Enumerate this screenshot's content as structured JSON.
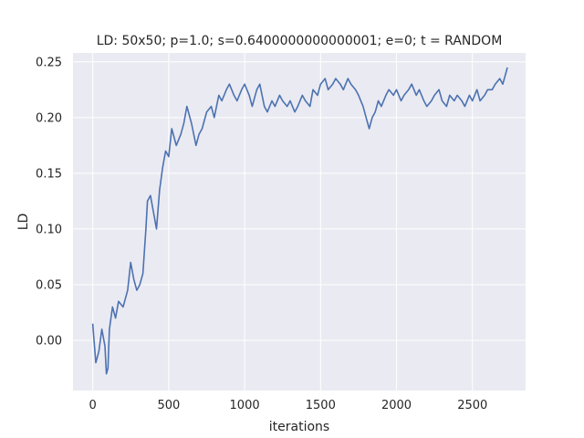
{
  "chart_data": {
    "type": "line",
    "title": "LD: 50x50; p=1.0; s=0.6400000000000001; e=0; t = RANDOM",
    "xlabel": "iterations",
    "ylabel": "LD",
    "xlim": [
      -130,
      2850
    ],
    "ylim": [
      -0.045,
      0.258
    ],
    "xticks": [
      0,
      500,
      1000,
      1500,
      2000,
      2500
    ],
    "yticks": [
      0.0,
      0.05,
      0.1,
      0.15,
      0.2,
      0.25
    ],
    "xtick_labels": [
      "0",
      "500",
      "1000",
      "1500",
      "2000",
      "2500"
    ],
    "ytick_labels": [
      "0.00",
      "0.05",
      "0.10",
      "0.15",
      "0.20",
      "0.25"
    ],
    "grid": true,
    "legend": "none",
    "colors": {
      "background": "#eaeaf2",
      "grid": "#ffffff",
      "line": "#4c72b0"
    },
    "series": [
      {
        "x": [
          0,
          20,
          40,
          60,
          80,
          90,
          100,
          110,
          130,
          150,
          170,
          200,
          230,
          250,
          270,
          290,
          310,
          330,
          350,
          360,
          380,
          400,
          420,
          440,
          460,
          480,
          500,
          520,
          550,
          580,
          600,
          620,
          650,
          680,
          700,
          720,
          750,
          780,
          800,
          830,
          850,
          880,
          900,
          930,
          950,
          980,
          1000,
          1030,
          1050,
          1080,
          1100,
          1130,
          1150,
          1180,
          1200,
          1230,
          1250,
          1280,
          1300,
          1330,
          1350,
          1380,
          1400,
          1430,
          1450,
          1480,
          1500,
          1530,
          1550,
          1580,
          1600,
          1630,
          1650,
          1680,
          1700,
          1730,
          1750,
          1780,
          1800,
          1820,
          1840,
          1860,
          1880,
          1900,
          1930,
          1950,
          1980,
          2000,
          2030,
          2050,
          2080,
          2100,
          2130,
          2150,
          2180,
          2200,
          2230,
          2250,
          2280,
          2300,
          2330,
          2350,
          2380,
          2400,
          2430,
          2450,
          2480,
          2500,
          2530,
          2550,
          2580,
          2600,
          2630,
          2650,
          2680,
          2700,
          2720,
          2730
        ],
        "y": [
          0.015,
          -0.02,
          -0.01,
          0.01,
          -0.005,
          -0.03,
          -0.025,
          0.01,
          0.03,
          0.02,
          0.035,
          0.03,
          0.045,
          0.07,
          0.055,
          0.045,
          0.05,
          0.06,
          0.1,
          0.125,
          0.13,
          0.115,
          0.1,
          0.135,
          0.155,
          0.17,
          0.165,
          0.19,
          0.175,
          0.185,
          0.195,
          0.21,
          0.195,
          0.175,
          0.185,
          0.19,
          0.205,
          0.21,
          0.2,
          0.22,
          0.215,
          0.225,
          0.23,
          0.22,
          0.215,
          0.225,
          0.23,
          0.22,
          0.21,
          0.225,
          0.23,
          0.21,
          0.205,
          0.215,
          0.21,
          0.22,
          0.215,
          0.21,
          0.215,
          0.205,
          0.21,
          0.22,
          0.215,
          0.21,
          0.225,
          0.22,
          0.23,
          0.235,
          0.225,
          0.23,
          0.235,
          0.23,
          0.225,
          0.235,
          0.23,
          0.225,
          0.22,
          0.21,
          0.2,
          0.19,
          0.2,
          0.205,
          0.215,
          0.21,
          0.22,
          0.225,
          0.22,
          0.225,
          0.215,
          0.22,
          0.225,
          0.23,
          0.22,
          0.225,
          0.215,
          0.21,
          0.215,
          0.22,
          0.225,
          0.215,
          0.21,
          0.22,
          0.215,
          0.22,
          0.215,
          0.21,
          0.22,
          0.215,
          0.225,
          0.215,
          0.22,
          0.225,
          0.225,
          0.23,
          0.235,
          0.23,
          0.24,
          0.245
        ]
      }
    ]
  }
}
